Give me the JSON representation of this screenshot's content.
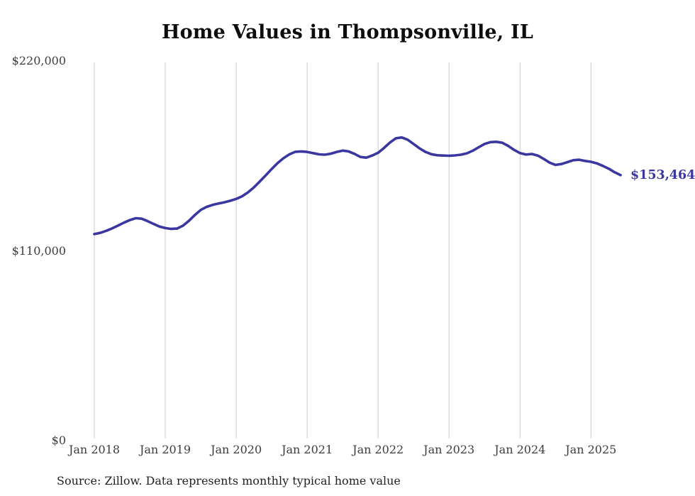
{
  "title": "Home Values in Thompsonville, IL",
  "source_note": "Source: Zillow. Data represents monthly typical home value",
  "colors": {
    "line": "#3a38a0",
    "grid": "#cccccc",
    "title_text": "#0d0d0d",
    "axis_text": "#3d3d3d",
    "source_text": "#1f1f1f",
    "background": "#ffffff"
  },
  "chart_data": {
    "type": "line",
    "title": "Home Values in Thompsonville, IL",
    "xlabel": "",
    "ylabel": "",
    "x_start": "Jan 2018",
    "x_frequency": "monthly",
    "x_end": "Jun 2025",
    "ylim": [
      0,
      220000
    ],
    "grid": "vertical-year-lines",
    "legend": "none",
    "y_ticks": [
      {
        "value": 0,
        "label": "$0"
      },
      {
        "value": 110000,
        "label": "$110,000"
      },
      {
        "value": 220000,
        "label": "$220,000"
      }
    ],
    "x_tick_labels": [
      "Jan 2018",
      "Jan 2019",
      "Jan 2020",
      "Jan 2021",
      "Jan 2022",
      "Jan 2023",
      "Jan 2024",
      "Jan 2025"
    ],
    "last_value_label": "$153,464",
    "last_value": 153464,
    "series": [
      {
        "name": "Typical home value",
        "color": "#3a38a0",
        "values": [
          119300,
          120000,
          121200,
          122600,
          124200,
          125900,
          127400,
          128500,
          128200,
          126800,
          125200,
          123700,
          122800,
          122300,
          122500,
          124200,
          127000,
          130300,
          133300,
          135100,
          136200,
          137000,
          137700,
          138600,
          139700,
          141200,
          143500,
          146400,
          149800,
          153400,
          157000,
          160400,
          163300,
          165500,
          167000,
          167200,
          166900,
          166200,
          165500,
          165300,
          165900,
          166900,
          167700,
          167200,
          165800,
          164000,
          163600,
          164800,
          166400,
          169200,
          172400,
          174800,
          175300,
          174000,
          171500,
          169000,
          166900,
          165600,
          165000,
          164800,
          164700,
          164900,
          165300,
          166100,
          167600,
          169600,
          171500,
          172600,
          172800,
          172200,
          170400,
          168100,
          166200,
          165400,
          165700,
          164800,
          162900,
          160700,
          159400,
          159900,
          161000,
          162100,
          162400,
          161700,
          161200,
          160300,
          158800,
          157200,
          155100,
          153464
        ]
      }
    ]
  }
}
